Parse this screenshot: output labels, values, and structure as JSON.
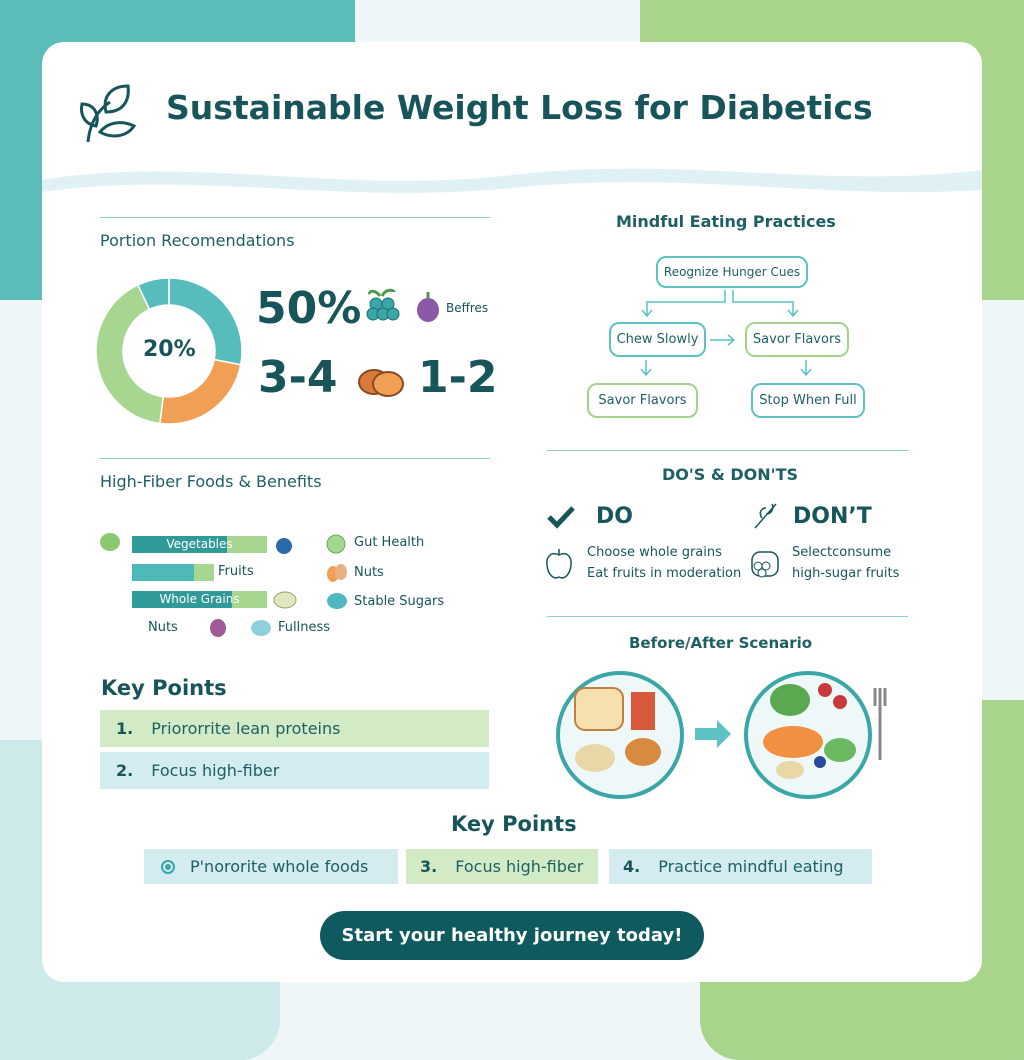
{
  "title": "Sustainable Weight Loss for Diabetics",
  "colors": {
    "dark_teal": "#17555a",
    "teal": "#4fb8b8",
    "green": "#a6d68f",
    "orange": "#f0a055",
    "button": "#0e5a5e"
  },
  "portion": {
    "heading": "Portion Recomendations",
    "center_label": "20%",
    "stat1": "50%",
    "berries_label": "Beffres",
    "stat2": "3-4",
    "stat3": "1-2"
  },
  "chart_data": {
    "type": "pie",
    "donut": true,
    "center_label": "20%",
    "segments": [
      {
        "color": "#56bcbc",
        "value": 28
      },
      {
        "color": "#f0a055",
        "value": 24
      },
      {
        "color": "#a6d68f",
        "value": 41
      },
      {
        "color": "#56bcbc",
        "value": 7
      }
    ]
  },
  "fiber": {
    "heading": "High-Fiber Foods & Benefits",
    "bars": [
      {
        "label": "Vegetables",
        "fill": 0.6
      },
      {
        "label": "Fruits",
        "fill": 0.7
      },
      {
        "label": "Whole Grains",
        "fill": 0.65
      }
    ],
    "extra_label": "Nuts",
    "benefits": [
      "Gut Health",
      "Nuts",
      "Stable Sugars",
      "Fullness"
    ]
  },
  "key_points_left": {
    "heading": "Key Points",
    "items": [
      {
        "num": "1.",
        "text": "Priororrite lean proteins"
      },
      {
        "num": "2.",
        "text": "Focus high-fiber"
      }
    ]
  },
  "mindful": {
    "heading": "Mindful Eating Practices",
    "nodes": [
      "Reognize Hunger Cues",
      "Chew Slowly",
      "Savor Flavors",
      "Savor Flavors",
      "Stop When Full"
    ]
  },
  "dos": {
    "heading": "DO'S & DON'TS",
    "do_label": "DO",
    "dont_label": "DON’T",
    "do_items": [
      "Choose whole grains",
      "Eat fruits in moderation"
    ],
    "dont_items": [
      "Selectconsume",
      "high-sugar fruits"
    ]
  },
  "scenario": {
    "heading": "Before/After Scenario"
  },
  "key_points_bottom": {
    "heading": "Key Points",
    "items": [
      {
        "num": "",
        "text": "P'nororite whole foods"
      },
      {
        "num": "3.",
        "text": "Focus high-fiber"
      },
      {
        "num": "4.",
        "text": "Practice mindful eating"
      }
    ]
  },
  "cta": "Start your healthy journey today!"
}
